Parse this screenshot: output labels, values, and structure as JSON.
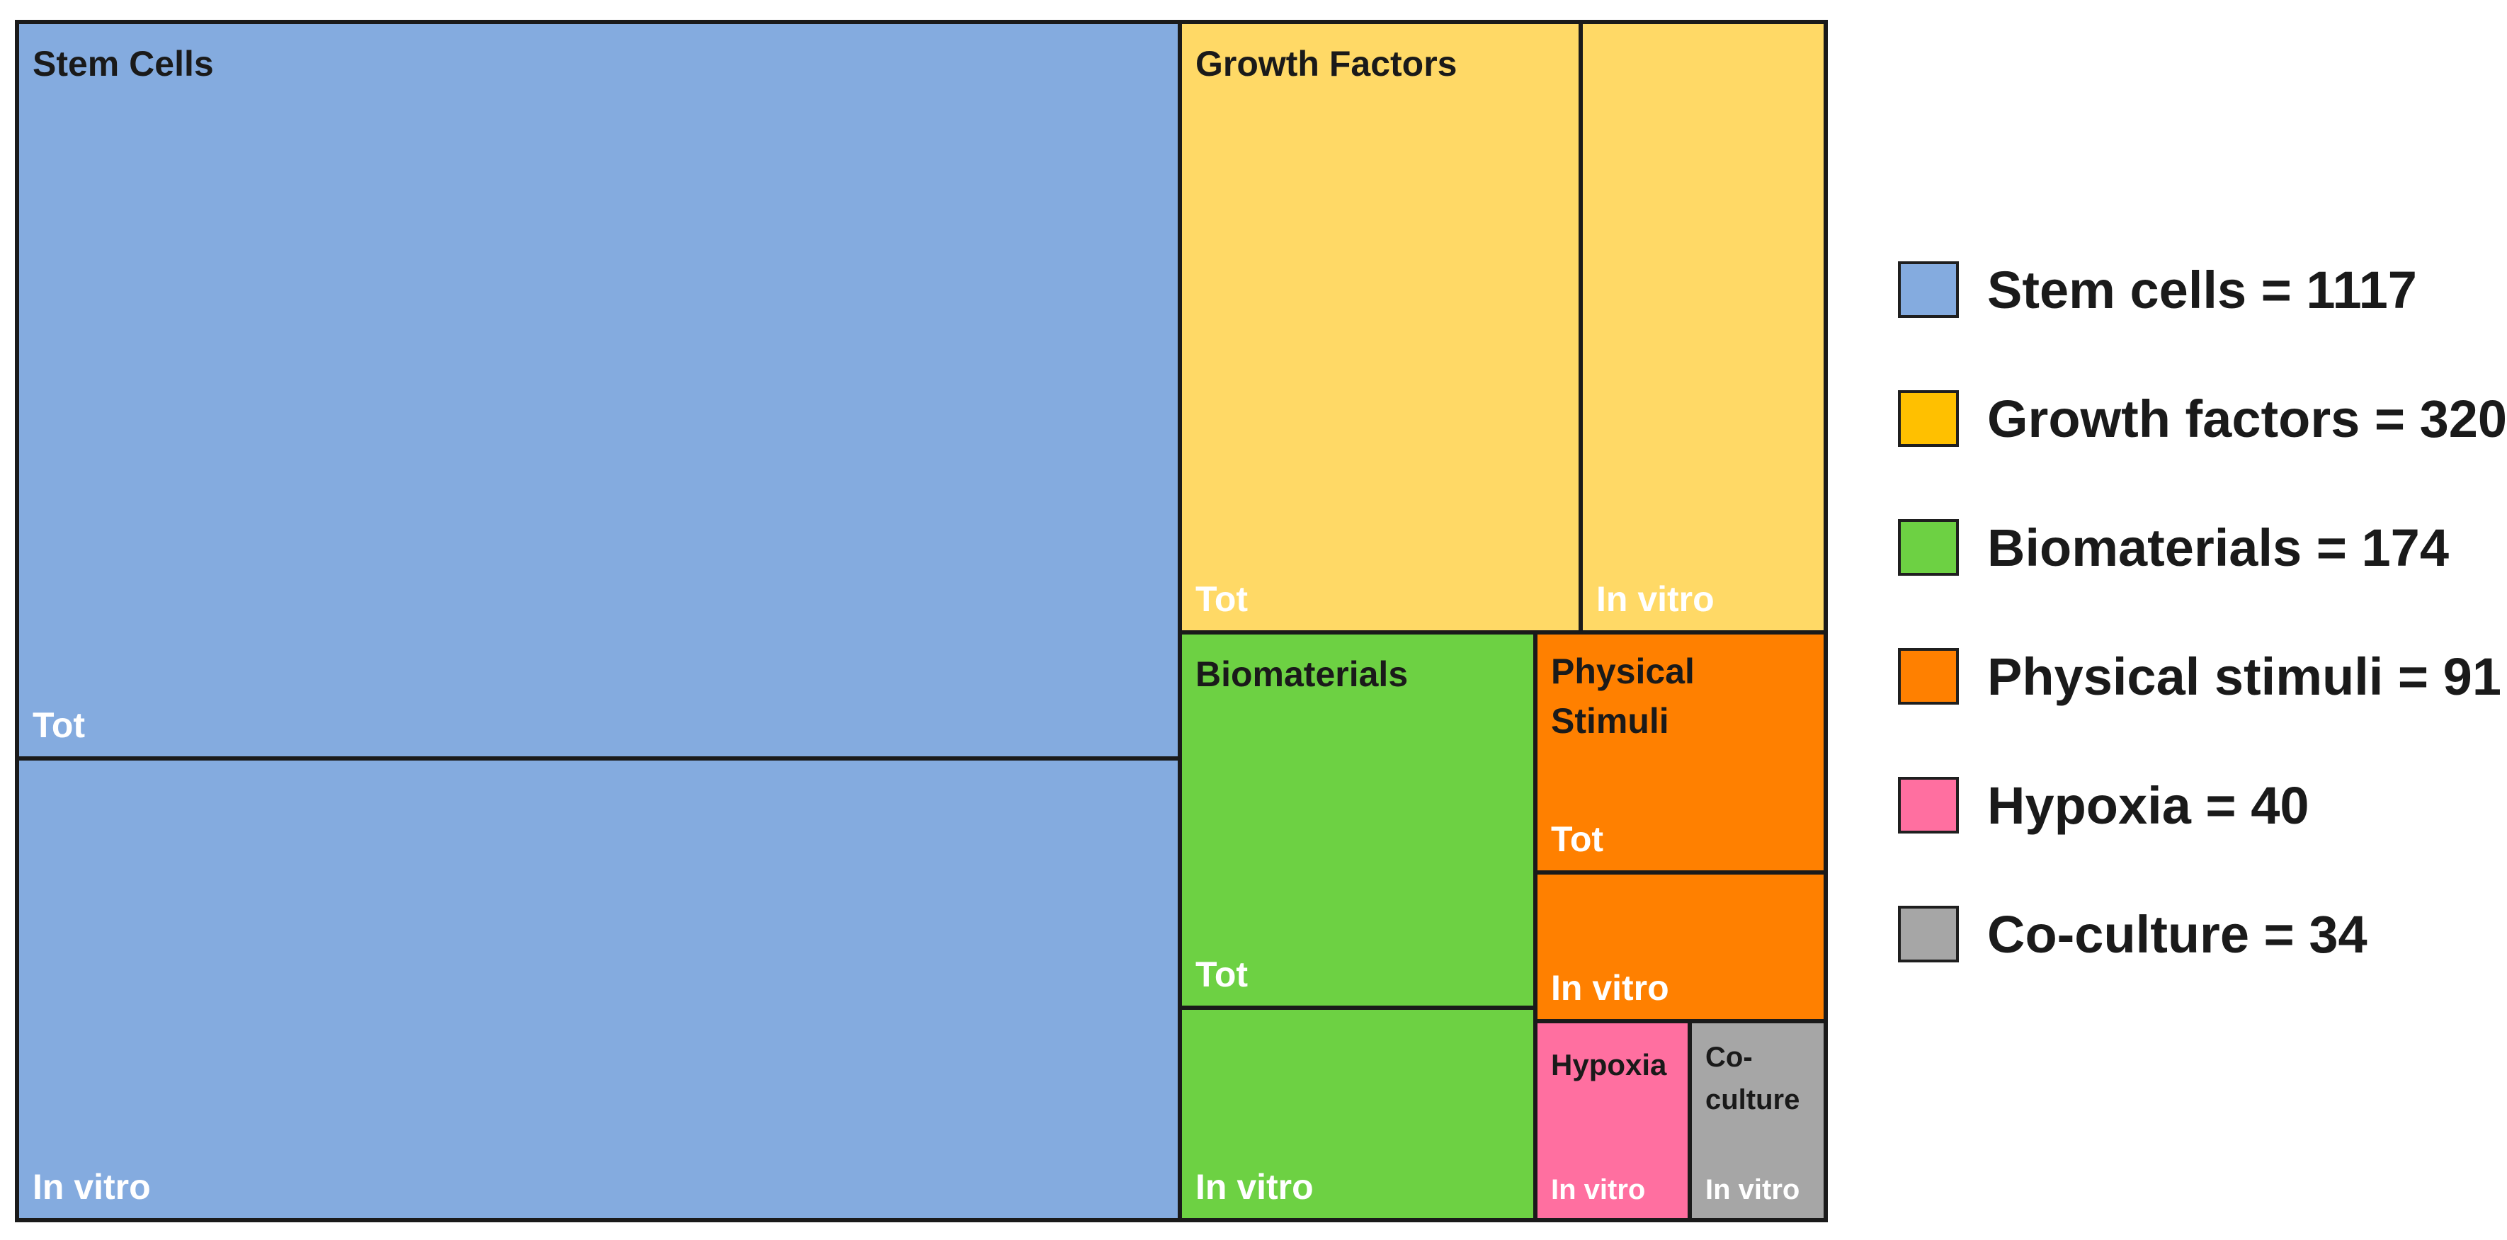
{
  "chart_data": {
    "type": "treemap",
    "title": "",
    "categories": [
      {
        "name": "Stem Cells",
        "legend_label": "Stem cells = 1117",
        "total": 1117,
        "color": "#84ABDF",
        "blocks": [
          {
            "label": "Tot",
            "title": "Stem Cells"
          },
          {
            "label": "In vitro",
            "title": ""
          }
        ]
      },
      {
        "name": "Growth Factors",
        "legend_label": "Growth factors = 320",
        "total": 320,
        "color": "#FFD966",
        "blocks": [
          {
            "label": "Tot",
            "title": "Growth Factors"
          },
          {
            "label": "In vitro",
            "title": ""
          }
        ]
      },
      {
        "name": "Biomaterials",
        "legend_label": "Biomaterials = 174",
        "total": 174,
        "color": "#6DD143",
        "blocks": [
          {
            "label": "Tot",
            "title": "Biomaterials"
          },
          {
            "label": "In vitro",
            "title": ""
          }
        ]
      },
      {
        "name": "Physical Stimuli",
        "legend_label": "Physical stimuli = 91",
        "total": 91,
        "color": "#FF8000",
        "blocks": [
          {
            "label": "Tot",
            "title": "Physical Stimuli"
          },
          {
            "label": "In vitro",
            "title": ""
          }
        ]
      },
      {
        "name": "Hypoxia",
        "legend_label": "Hypoxia = 40",
        "total": 40,
        "color": "#FF6FA0",
        "blocks": [
          {
            "label": "In vitro",
            "title": "Hypoxia"
          }
        ]
      },
      {
        "name": "Co-culture",
        "legend_label": "Co-culture = 34",
        "total": 34,
        "color": "#A6A6A6",
        "blocks": [
          {
            "label": "In vitro",
            "title": "Co-culture"
          }
        ]
      }
    ],
    "legend": {
      "position": "right",
      "swatch_colors": [
        "#84ABDF",
        "#FFC000",
        "#6DD143",
        "#FF8000",
        "#FF6FA0",
        "#A6A6A6"
      ]
    }
  }
}
